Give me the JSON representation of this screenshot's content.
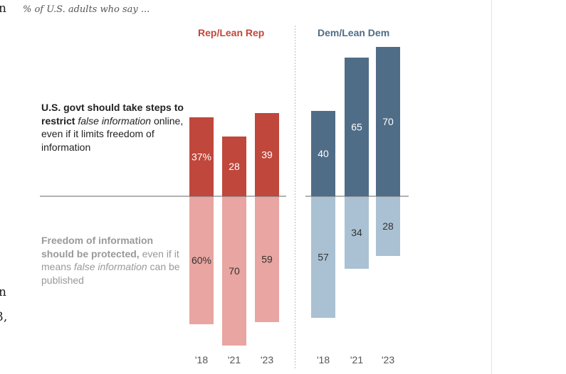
{
  "edge_text": [
    "n",
    "n",
    "3,"
  ],
  "chart_data": {
    "type": "bar",
    "subtitle": "% of U.S. adults who say ...",
    "categories": [
      "'18",
      "'21",
      "'23"
    ],
    "groups": [
      {
        "name": "Rep/Lean Rep",
        "color": "#c0473b",
        "light": "#e8a5a1",
        "restrict": [
          37,
          28,
          39
        ],
        "protect": [
          60,
          70,
          59
        ],
        "restrict_labels": [
          "37%",
          "28",
          "39"
        ],
        "protect_labels": [
          "60%",
          "70",
          "59"
        ]
      },
      {
        "name": "Dem/Lean Dem",
        "color": "#4f6d87",
        "light": "#a9c1d3",
        "restrict": [
          40,
          65,
          70
        ],
        "protect": [
          57,
          34,
          28
        ],
        "restrict_labels": [
          "40",
          "65",
          "70"
        ],
        "protect_labels": [
          "57",
          "34",
          "28"
        ]
      }
    ],
    "series_labels": {
      "restrict": {
        "bold": "U.S. govt should take steps to restrict",
        "italic": "false information",
        "rest": "online, even if it limits freedom of information"
      },
      "protect": {
        "bold": "Freedom of information should be protected,",
        "rest1": "even if it means",
        "italic": "false information",
        "rest2": "can be published"
      }
    }
  }
}
